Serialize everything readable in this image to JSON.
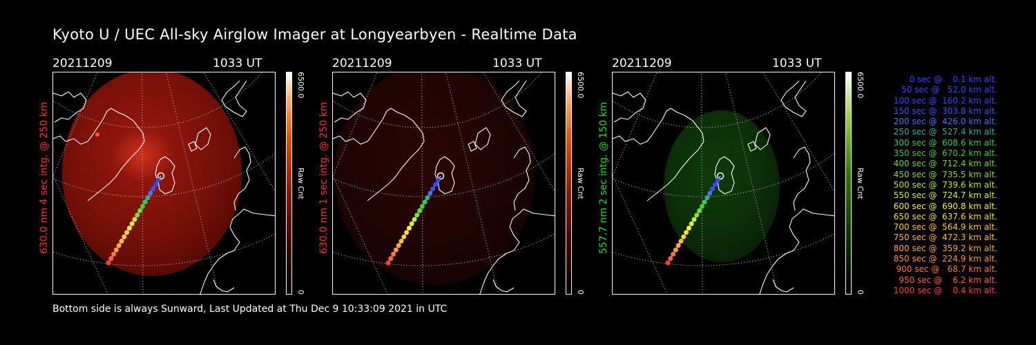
{
  "title": "Kyoto U / UEC All-sky Airglow Imager at Longyearbyen - Realtime Data",
  "panels": [
    {
      "date": "20211209",
      "time": "1033 UT",
      "label": "630.0 nm 4 sec intg. @ 250 km",
      "label_color": "#ff3322",
      "cbar_max": "6500.0",
      "cbar_unit": "Raw Cnt",
      "cbar_min": "0",
      "glow": "red"
    },
    {
      "date": "20211209",
      "time": "1033 UT",
      "label": "630.0 nm 1 sec intg. @ 250 km",
      "label_color": "#ff3322",
      "cbar_max": "6500.0",
      "cbar_unit": "Raw Cnt",
      "cbar_min": "0",
      "glow": "dimred"
    },
    {
      "date": "20211209",
      "time": "1033 UT",
      "label": "557.7 nm 2 sec intg. @ 150 km",
      "label_color": "#22dd22",
      "cbar_max": "6500.0",
      "cbar_unit": "Raw Cnt",
      "cbar_min": "0",
      "glow": "green"
    }
  ],
  "legend": [
    {
      "text": "0 sec @    0.1 km alt.",
      "color": "#3344ff"
    },
    {
      "text": "50 sec @   52.0 km alt.",
      "color": "#3344ff"
    },
    {
      "text": "100 sec @  160.2 km alt.",
      "color": "#3344ff"
    },
    {
      "text": "150 sec @  303.8 km alt.",
      "color": "#3355ff"
    },
    {
      "text": "200 sec @  426.0 km alt.",
      "color": "#4477ee"
    },
    {
      "text": "250 sec @  527.4 km alt.",
      "color": "#33aaaa"
    },
    {
      "text": "300 sec @  608.6 km alt.",
      "color": "#33cc55"
    },
    {
      "text": "350 sec @  670.2 km alt.",
      "color": "#44cc33"
    },
    {
      "text": "400 sec @  712.4 km alt.",
      "color": "#66dd33"
    },
    {
      "text": "450 sec @  735.5 km alt.",
      "color": "#88dd33"
    },
    {
      "text": "500 sec @  739.6 km alt.",
      "color": "#bbee33"
    },
    {
      "text": "550 sec @  724.7 km alt.",
      "color": "#ddee33"
    },
    {
      "text": "600 sec @  690.8 km alt.",
      "color": "#ffee44"
    },
    {
      "text": "650 sec @  637.6 km alt.",
      "color": "#ffdd44"
    },
    {
      "text": "700 sec @  564.9 km alt.",
      "color": "#ffcc44"
    },
    {
      "text": "750 sec @  472.3 km alt.",
      "color": "#ffbb44"
    },
    {
      "text": "800 sec @  359.2 km alt.",
      "color": "#ffaa44"
    },
    {
      "text": "850 sec @  224.9 km alt.",
      "color": "#ff9944"
    },
    {
      "text": "900 sec @   68.7 km alt.",
      "color": "#ff7744"
    },
    {
      "text": "950 sec @    6.2 km alt.",
      "color": "#ff6644"
    },
    {
      "text": "1000 sec @    0.4 km alt.",
      "color": "#ff4433"
    }
  ],
  "footer": "Bottom side is always Sunward, Last Updated at Thu Dec  9 10:33:09 2021 in UTC"
}
